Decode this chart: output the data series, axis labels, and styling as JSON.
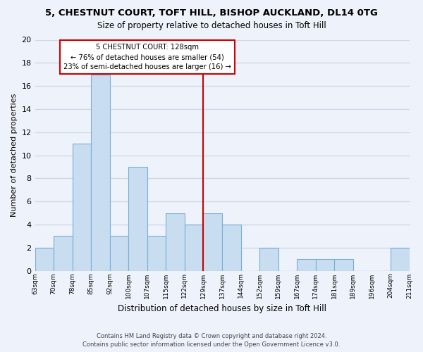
{
  "title": "5, CHESTNUT COURT, TOFT HILL, BISHOP AUCKLAND, DL14 0TG",
  "subtitle": "Size of property relative to detached houses in Toft Hill",
  "xlabel": "Distribution of detached houses by size in Toft Hill",
  "ylabel": "Number of detached properties",
  "bin_labels": [
    "63sqm",
    "70sqm",
    "78sqm",
    "85sqm",
    "92sqm",
    "100sqm",
    "107sqm",
    "115sqm",
    "122sqm",
    "129sqm",
    "137sqm",
    "144sqm",
    "152sqm",
    "159sqm",
    "167sqm",
    "174sqm",
    "181sqm",
    "189sqm",
    "196sqm",
    "204sqm",
    "211sqm"
  ],
  "bar_values": [
    2,
    3,
    11,
    17,
    3,
    9,
    3,
    5,
    4,
    5,
    4,
    0,
    2,
    0,
    1,
    1,
    1,
    0,
    0,
    2
  ],
  "bar_color": "#c8ddf0",
  "bar_edge_color": "#7aaed6",
  "marker_bin_index": 9,
  "marker_label": "5 CHESTNUT COURT: 128sqm",
  "annotation_line1": "← 76% of detached houses are smaller (54)",
  "annotation_line2": "23% of semi-detached houses are larger (16) →",
  "annotation_box_color": "#ffffff",
  "annotation_box_edge_color": "#cc0000",
  "marker_line_color": "#cc0000",
  "ylim": [
    0,
    20
  ],
  "yticks": [
    0,
    2,
    4,
    6,
    8,
    10,
    12,
    14,
    16,
    18,
    20
  ],
  "footnote1": "Contains HM Land Registry data © Crown copyright and database right 2024.",
  "footnote2": "Contains public sector information licensed under the Open Government Licence v3.0.",
  "background_color": "#eef2fa",
  "plot_bg_color": "#eef2fa",
  "grid_color": "#d0d8e8"
}
